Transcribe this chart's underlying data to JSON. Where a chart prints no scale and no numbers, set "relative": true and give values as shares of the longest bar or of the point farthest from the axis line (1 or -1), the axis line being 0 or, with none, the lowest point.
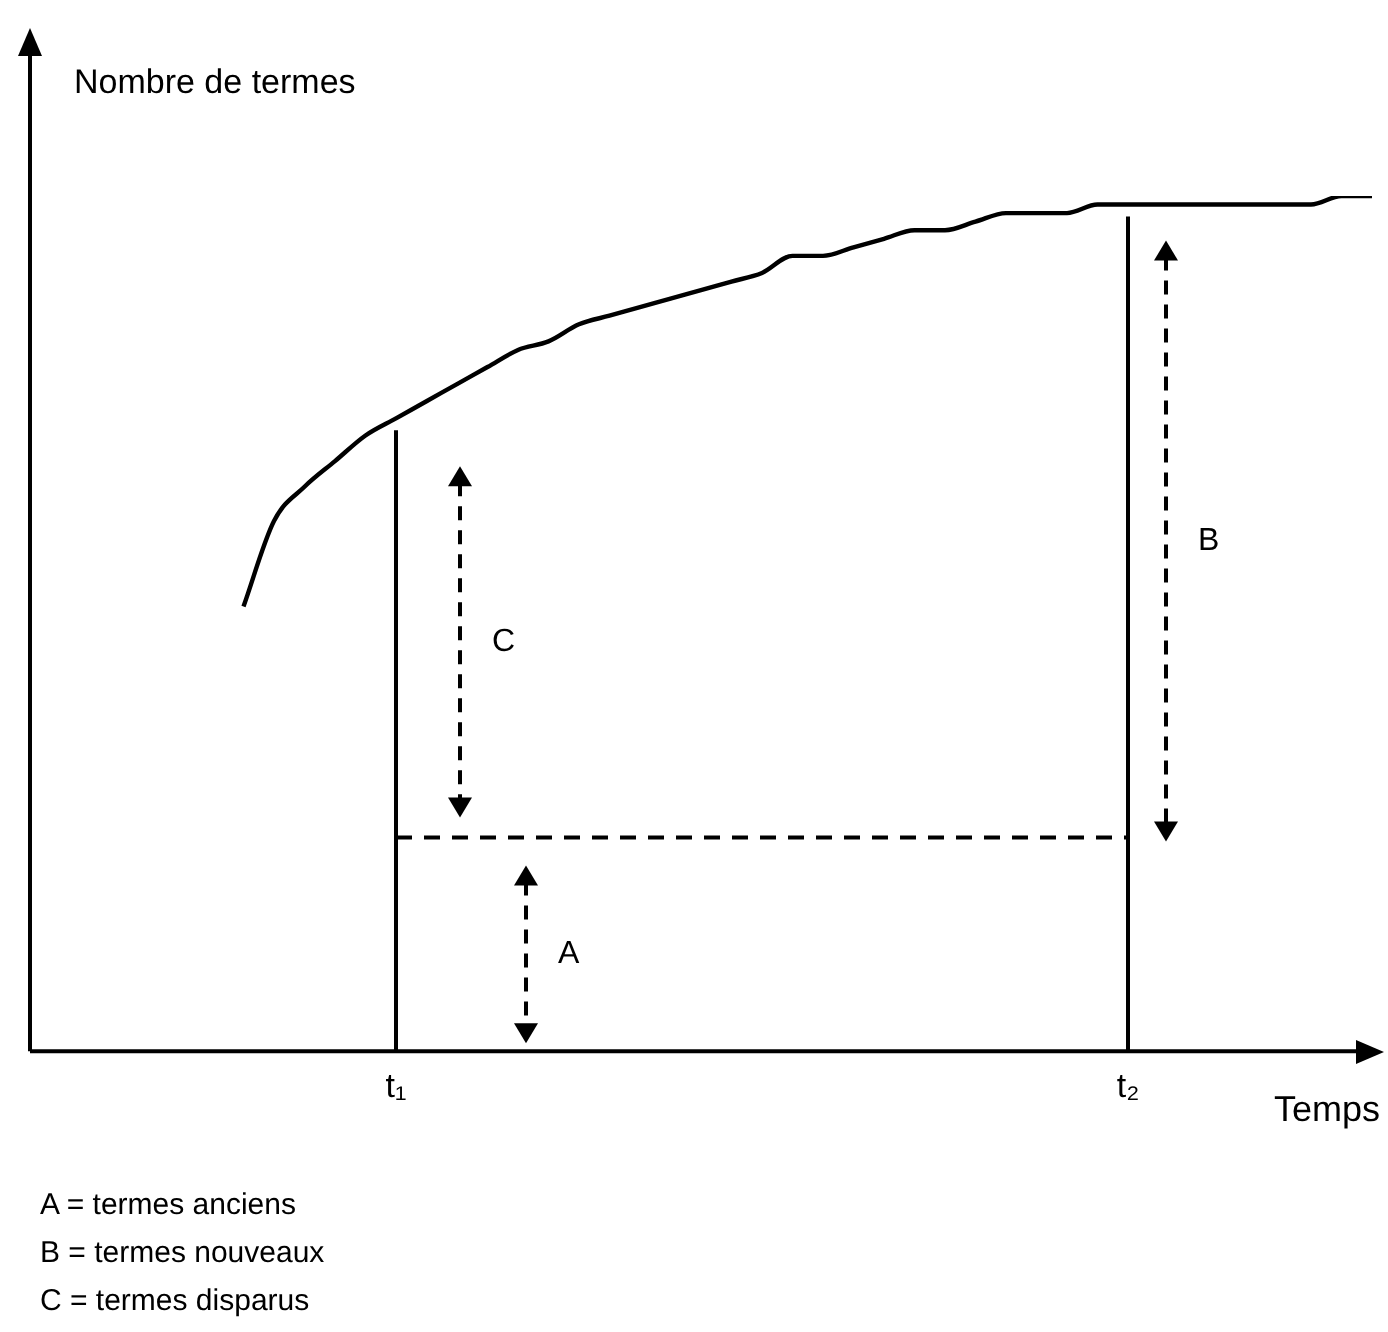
{
  "chart_data": {
    "type": "line",
    "relative": true,
    "ylabel": "Nombre de termes",
    "xlabel": "Temps",
    "categories": [
      null,
      null,
      null,
      null,
      null,
      null,
      null,
      null,
      null,
      null,
      null,
      null,
      "t₁",
      null,
      null,
      null,
      null,
      null,
      null,
      null,
      null,
      null,
      null,
      null,
      null,
      null,
      null,
      null,
      null,
      null,
      null,
      null,
      null,
      null,
      null,
      null,
      "t₂",
      null,
      null,
      null,
      null,
      null,
      null,
      null,
      null
    ],
    "series": [
      {
        "color": "#000000",
        "values": [
          null,
          null,
          null,
          null,
          null,
          null,
          null,
          0.52,
          0.62,
          0.66,
          0.69,
          0.72,
          0.74,
          0.76,
          0.78,
          0.8,
          0.82,
          0.83,
          0.85,
          0.86,
          0.87,
          0.88,
          0.89,
          0.9,
          0.91,
          0.93,
          0.93,
          0.94,
          0.95,
          0.96,
          0.96,
          0.97,
          0.98,
          0.98,
          0.98,
          0.99,
          0.99,
          0.99,
          0.99,
          0.99,
          0.99,
          0.99,
          0.99,
          1.0,
          1.0
        ]
      }
    ],
    "ref_lines": [
      {
        "axis": "x",
        "value": "t₁",
        "color": "#000000"
      },
      {
        "axis": "x",
        "value": "t₂",
        "color": "#000000"
      },
      {
        "axis": "y",
        "value": 0.25,
        "color": "#000000",
        "line_style": "dashed"
      }
    ],
    "annotations": [
      "A",
      "B",
      "C",
      "A = termes anciens",
      "B = termes nouveaux",
      "C = termes disparus"
    ],
    "marker": "none",
    "line_style": "solid",
    "grid": false,
    "legend": false
  }
}
